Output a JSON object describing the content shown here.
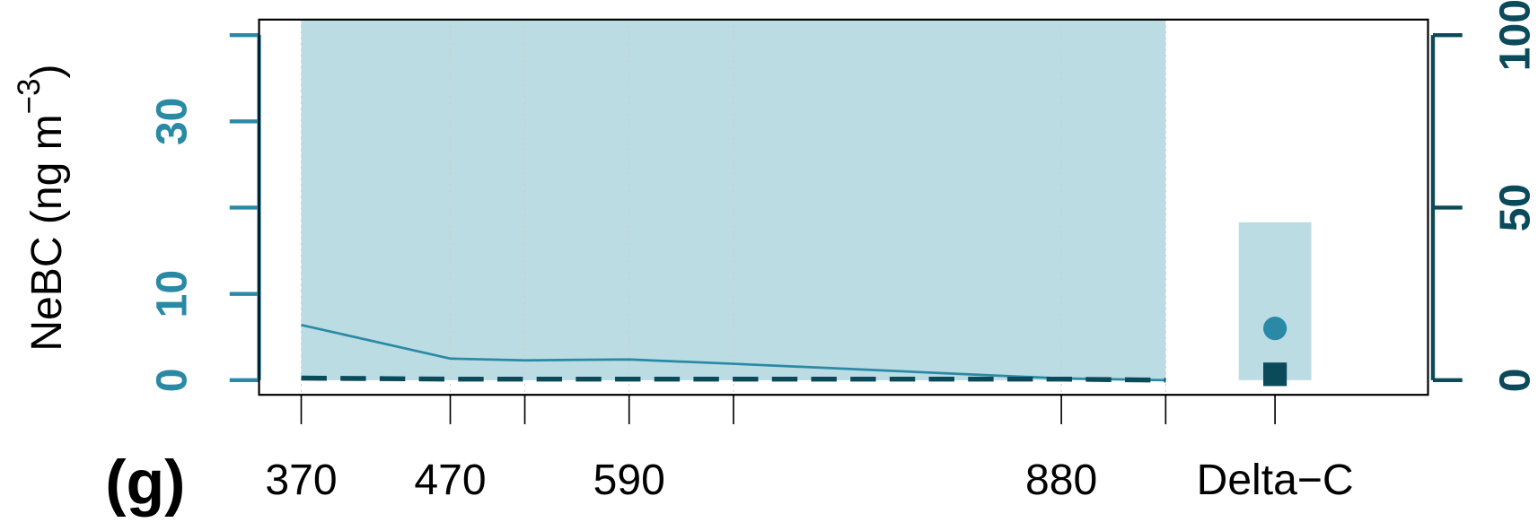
{
  "chart_data": {
    "type": "line",
    "panel_label": "(g)",
    "y_label": {
      "text": "NeBC (ng m",
      "sup": "−3",
      "close": ")"
    },
    "x": [
      370,
      470,
      520,
      590,
      660,
      880,
      950
    ],
    "xlim": [
      341.7,
      1126
    ],
    "xticks": [
      370,
      470,
      {
        "value": 520,
        "label": null
      },
      590,
      {
        "value": 660,
        "label": null
      },
      880,
      {
        "value": 950,
        "label": null
      }
    ],
    "ylim": [
      -1.7,
      41.8
    ],
    "yticks": [
      0,
      10,
      {
        "value": 20,
        "label": null
      },
      30,
      {
        "value": 40,
        "label": null
      }
    ],
    "y2lim": [
      -4.25,
      104.5
    ],
    "y2ticks": [
      0,
      50,
      100
    ],
    "grid": true,
    "y_color": "#2a8aa6",
    "y2_color": "#0b4a5a",
    "band": {
      "color": "#bcdce3",
      "lower": [
        0,
        0,
        0,
        0,
        0,
        0,
        0
      ],
      "upper": [
        41.8,
        41.8,
        41.8,
        41.8,
        41.8,
        41.8,
        41.8
      ]
    },
    "series": [
      {
        "color": "#2a8aa6",
        "style": "solid",
        "values": [
          6.4,
          2.5,
          2.3,
          2.4,
          1.9,
          0.2,
          0
        ]
      },
      {
        "color": "#0b4a5a",
        "style": "dashed",
        "axis": "y2",
        "values": [
          0.6,
          0.3,
          0.3,
          0.3,
          0.3,
          0.3,
          0
        ]
      }
    ],
    "delta_c": {
      "label": "Delta−C",
      "box_lower": 0,
      "box_upper": 18.3,
      "circle": 6.0,
      "square": 1.7
    }
  }
}
